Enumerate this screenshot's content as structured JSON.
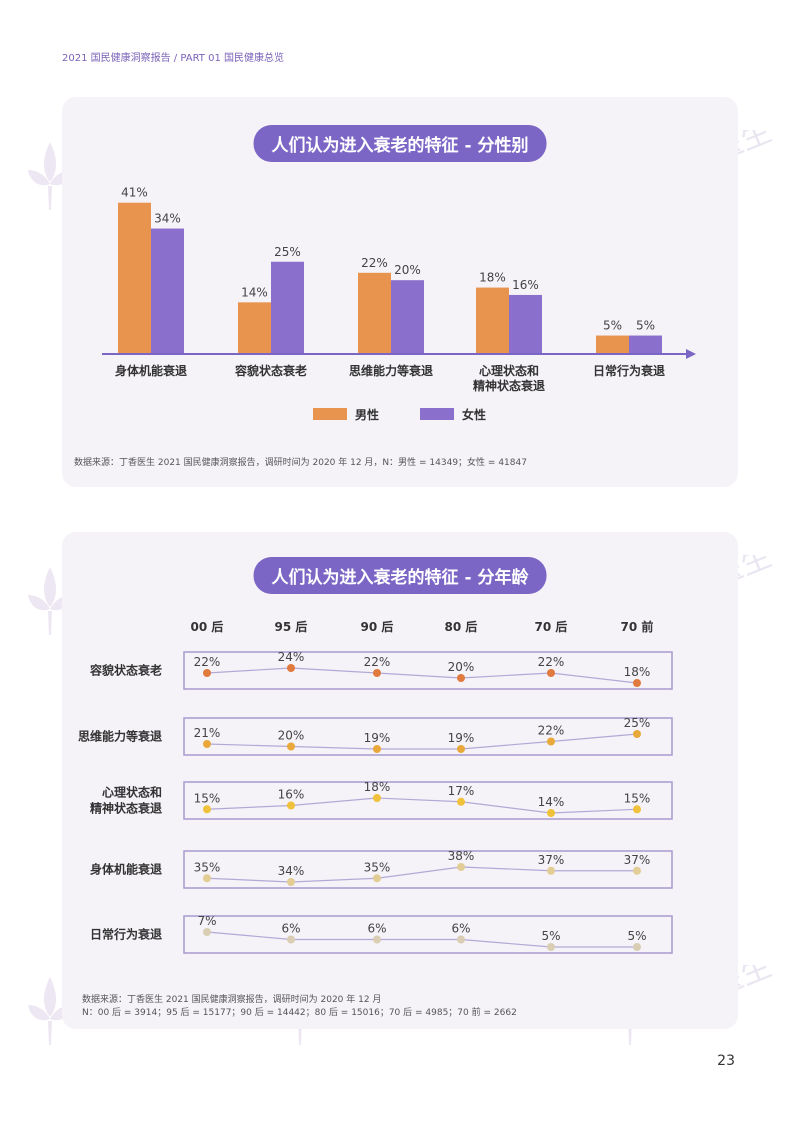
{
  "header": {
    "text": "2021 国民健康洞察报告 / PART 01 国民健康总览"
  },
  "watermark": {
    "text": "丁香医生"
  },
  "page_number": "23",
  "colors": {
    "accent": "#7b66c6",
    "male": "#e8944f",
    "female": "#8a6fcc",
    "panel_bg": "#f5f2f8"
  },
  "chart1": {
    "title": "人们认为进入衰老的特征 - 分性别",
    "source": "数据来源：丁香医生 2021 国民健康洞察报告，调研时间为 2020 年 12 月，N：男性 = 14349；女性 = 41847",
    "chart_data": {
      "type": "bar",
      "categories": [
        [
          "身体机能衰退"
        ],
        [
          "容貌状态衰老"
        ],
        [
          "思维能力等衰退"
        ],
        [
          "心理状态和",
          "精神状态衰退"
        ],
        [
          "日常行为衰退"
        ]
      ],
      "series": [
        {
          "name": "男性",
          "color": "#e8944f",
          "values": [
            41,
            14,
            22,
            18,
            5
          ],
          "labels": [
            "41%",
            "14%",
            "22%",
            "18%",
            "5%"
          ]
        },
        {
          "name": "女性",
          "color": "#8a6fcc",
          "values": [
            34,
            25,
            20,
            16,
            5
          ],
          "labels": [
            "34%",
            "25%",
            "20%",
            "16%",
            "5%"
          ]
        }
      ],
      "ylim": [
        0,
        45
      ],
      "legend": "bottom-center"
    }
  },
  "chart2": {
    "title": "人们认为进入衰老的特征 - 分年龄",
    "source_line1": "数据来源：丁香医生 2021 国民健康洞察报告，调研时间为 2020 年 12 月",
    "source_line2": "N：00 后 = 3914；95 后 = 15177；90 后 = 14442；80 后 = 15016；70 后 = 4985；70 前 = 2662",
    "chart_data": {
      "type": "line",
      "x": [
        "00 后",
        "95 后",
        "90 后",
        "80 后",
        "70 后",
        "70 前"
      ],
      "rows": [
        {
          "name": [
            "容貌状态衰老"
          ],
          "color": "#e07a3e",
          "values": [
            22,
            24,
            22,
            20,
            22,
            18
          ],
          "labels": [
            "22%",
            "24%",
            "22%",
            "20%",
            "22%",
            "18%"
          ]
        },
        {
          "name": [
            "思维能力等衰退"
          ],
          "color": "#e9a93a",
          "values": [
            21,
            20,
            19,
            19,
            22,
            25
          ],
          "labels": [
            "21%",
            "20%",
            "19%",
            "19%",
            "22%",
            "25%"
          ]
        },
        {
          "name": [
            "心理状态和",
            "精神状态衰退"
          ],
          "color": "#f0c13a",
          "values": [
            15,
            16,
            18,
            17,
            14,
            15
          ],
          "labels": [
            "15%",
            "16%",
            "18%",
            "17%",
            "14%",
            "15%"
          ]
        },
        {
          "name": [
            "身体机能衰退"
          ],
          "color": "#e2cd94",
          "values": [
            35,
            34,
            35,
            38,
            37,
            37
          ],
          "labels": [
            "35%",
            "34%",
            "35%",
            "38%",
            "37%",
            "37%"
          ]
        },
        {
          "name": [
            "日常行为衰退"
          ],
          "color": "#d9ceb3",
          "values": [
            7,
            6,
            6,
            6,
            5,
            5
          ],
          "labels": [
            "7%",
            "6%",
            "6%",
            "6%",
            "5%",
            "5%"
          ]
        }
      ]
    }
  }
}
